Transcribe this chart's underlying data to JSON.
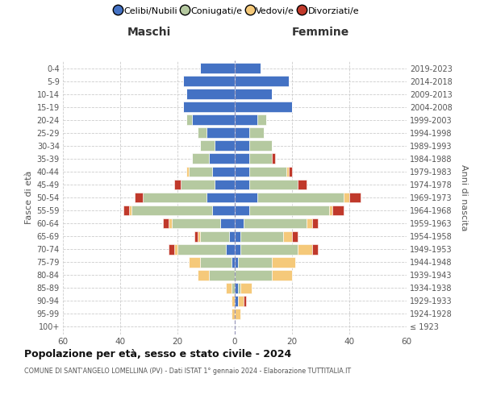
{
  "age_groups": [
    "100+",
    "95-99",
    "90-94",
    "85-89",
    "80-84",
    "75-79",
    "70-74",
    "65-69",
    "60-64",
    "55-59",
    "50-54",
    "45-49",
    "40-44",
    "35-39",
    "30-34",
    "25-29",
    "20-24",
    "15-19",
    "10-14",
    "5-9",
    "0-4"
  ],
  "birth_years": [
    "≤ 1923",
    "1924-1928",
    "1929-1933",
    "1934-1938",
    "1939-1943",
    "1944-1948",
    "1949-1953",
    "1954-1958",
    "1959-1963",
    "1964-1968",
    "1969-1973",
    "1974-1978",
    "1979-1983",
    "1984-1988",
    "1989-1993",
    "1994-1998",
    "1999-2003",
    "2004-2008",
    "2009-2013",
    "2014-2018",
    "2019-2023"
  ],
  "colors": {
    "celibi": "#4472c4",
    "coniugati": "#b5c9a0",
    "vedovi": "#f5c97a",
    "divorziati": "#c0392b"
  },
  "maschi": {
    "celibi": [
      0,
      0,
      0,
      0,
      0,
      1,
      3,
      2,
      5,
      8,
      10,
      7,
      8,
      9,
      7,
      10,
      15,
      18,
      17,
      18,
      12
    ],
    "coniugati": [
      0,
      0,
      0,
      1,
      9,
      11,
      17,
      10,
      17,
      28,
      22,
      12,
      8,
      6,
      5,
      3,
      2,
      0,
      0,
      0,
      0
    ],
    "vedovi": [
      0,
      1,
      1,
      2,
      4,
      4,
      1,
      1,
      1,
      1,
      0,
      0,
      1,
      0,
      0,
      0,
      0,
      0,
      0,
      0,
      0
    ],
    "divorziati": [
      0,
      0,
      0,
      0,
      0,
      0,
      2,
      1,
      2,
      2,
      3,
      2,
      0,
      0,
      0,
      0,
      0,
      0,
      0,
      0,
      0
    ]
  },
  "femmine": {
    "celibi": [
      0,
      0,
      1,
      1,
      0,
      1,
      2,
      2,
      3,
      5,
      8,
      5,
      5,
      5,
      5,
      5,
      8,
      20,
      13,
      19,
      9
    ],
    "coniugati": [
      0,
      0,
      0,
      1,
      13,
      12,
      20,
      15,
      22,
      28,
      30,
      17,
      13,
      8,
      8,
      5,
      3,
      0,
      0,
      0,
      0
    ],
    "vedovi": [
      0,
      2,
      2,
      4,
      7,
      8,
      5,
      3,
      2,
      1,
      2,
      0,
      1,
      0,
      0,
      0,
      0,
      0,
      0,
      0,
      0
    ],
    "divorziati": [
      0,
      0,
      1,
      0,
      0,
      0,
      2,
      2,
      2,
      4,
      4,
      3,
      1,
      1,
      0,
      0,
      0,
      0,
      0,
      0,
      0
    ]
  },
  "title": "Popolazione per età, sesso e stato civile - 2024",
  "subtitle": "COMUNE DI SANT'ANGELO LOMELLINA (PV) - Dati ISTAT 1° gennaio 2024 - Elaborazione TUTTITALIA.IT",
  "xlabel_maschi": "Maschi",
  "xlabel_femmine": "Femmine",
  "ylabel_left": "Fasce di età",
  "ylabel_right": "Anni di nascita",
  "xlim": 60,
  "background_color": "#ffffff",
  "grid_color": "#cccccc",
  "legend_labels": [
    "Celibi/Nubili",
    "Coniugati/e",
    "Vedovi/e",
    "Divorziati/e"
  ]
}
